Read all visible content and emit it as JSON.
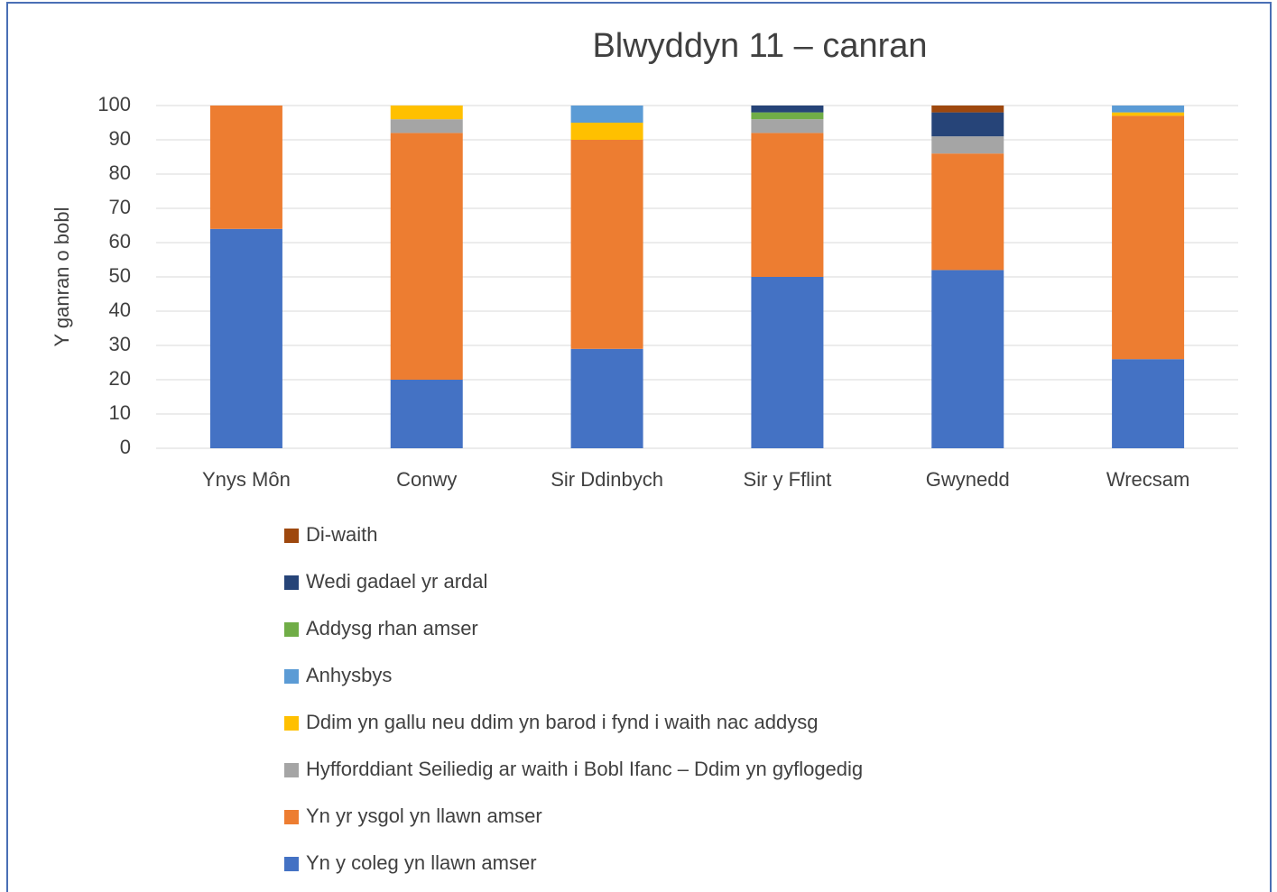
{
  "chart_data": {
    "type": "stacked_bar",
    "title": "Blwyddyn 11 – canran",
    "y_label": "Y ganran o bobl",
    "categories": [
      "Ynys Môn",
      "Conwy",
      "Sir Ddinbych",
      "Sir y Fflint",
      "Gwynedd",
      "Wrecsam"
    ],
    "series": [
      {
        "name": "Yn y coleg yn llawn amser",
        "color": "#4472c4",
        "values": [
          64,
          20,
          29,
          50,
          52,
          26
        ]
      },
      {
        "name": "Yn yr ysgol yn llawn amser",
        "color": "#ed7d31",
        "values": [
          36,
          72,
          61,
          42,
          34,
          71
        ]
      },
      {
        "name": "Hyfforddiant Seiliedig ar waith i Bobl Ifanc – Ddim yn gyflogedig",
        "color": "#a5a5a5",
        "values": [
          0,
          4,
          0,
          4,
          5,
          0
        ]
      },
      {
        "name": "Ddim yn gallu neu ddim yn barod i fynd i waith nac addysg",
        "color": "#ffc000",
        "values": [
          0,
          4,
          5,
          0,
          0,
          1
        ]
      },
      {
        "name": "Anhysbys",
        "color": "#5b9bd5",
        "values": [
          0,
          0,
          5,
          0,
          0,
          2
        ]
      },
      {
        "name": "Addysg rhan amser",
        "color": "#70ad47",
        "values": [
          0,
          0,
          0,
          2,
          0,
          0
        ]
      },
      {
        "name": "Wedi gadael yr ardal",
        "color": "#264478",
        "values": [
          0,
          0,
          0,
          2,
          7,
          0
        ]
      },
      {
        "name": "Di-waith",
        "color": "#9e480e",
        "values": [
          0,
          0,
          0,
          0,
          2,
          0
        ]
      }
    ],
    "ylim": [
      0,
      100
    ],
    "yticks": [
      0,
      10,
      20,
      30,
      40,
      50,
      60,
      70,
      80,
      90,
      100
    ],
    "grid": true,
    "legend": "bottom"
  }
}
